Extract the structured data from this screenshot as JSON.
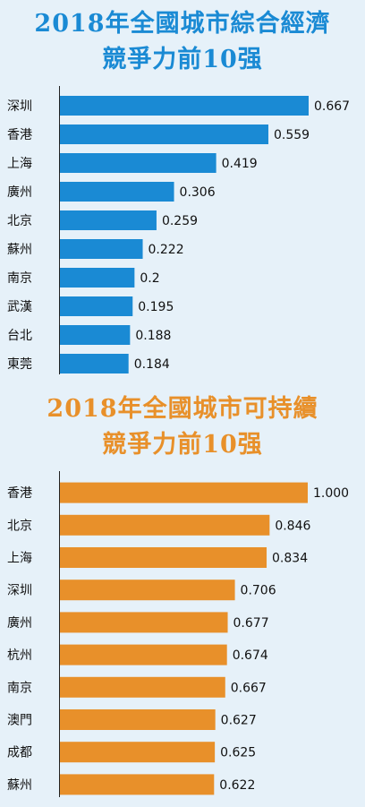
{
  "chart_data": [
    {
      "type": "bar",
      "orientation": "horizontal",
      "title": "2018年全國城市綜合經濟",
      "subtitle": "競爭力前10强",
      "categories": [
        "深圳",
        "香港",
        "上海",
        "廣州",
        "北京",
        "蘇州",
        "南京",
        "武漢",
        "台北",
        "東莞"
      ],
      "values": [
        0.667,
        0.559,
        0.419,
        0.306,
        0.259,
        0.222,
        0.2,
        0.195,
        0.188,
        0.184
      ],
      "value_labels": [
        "0.667",
        "0.559",
        "0.419",
        "0.306",
        "0.259",
        "0.222",
        "0.2",
        "0.195",
        "0.188",
        "0.184"
      ],
      "color": "#1a8ad4",
      "title_color": "#1a8ad4",
      "grid": false
    },
    {
      "type": "bar",
      "orientation": "horizontal",
      "title": "2018年全國城市可持續",
      "subtitle": "競爭力前10强",
      "categories": [
        "香港",
        "北京",
        "上海",
        "深圳",
        "廣州",
        "杭州",
        "南京",
        "澳門",
        "成都",
        "蘇州"
      ],
      "values": [
        1.0,
        0.846,
        0.834,
        0.706,
        0.677,
        0.674,
        0.667,
        0.627,
        0.625,
        0.622
      ],
      "value_labels": [
        "1.000",
        "0.846",
        "0.834",
        "0.706",
        "0.677",
        "0.674",
        "0.667",
        "0.627",
        "0.625",
        "0.622"
      ],
      "color": "#e8902a",
      "title_color": "#e8902a",
      "grid": false
    }
  ]
}
